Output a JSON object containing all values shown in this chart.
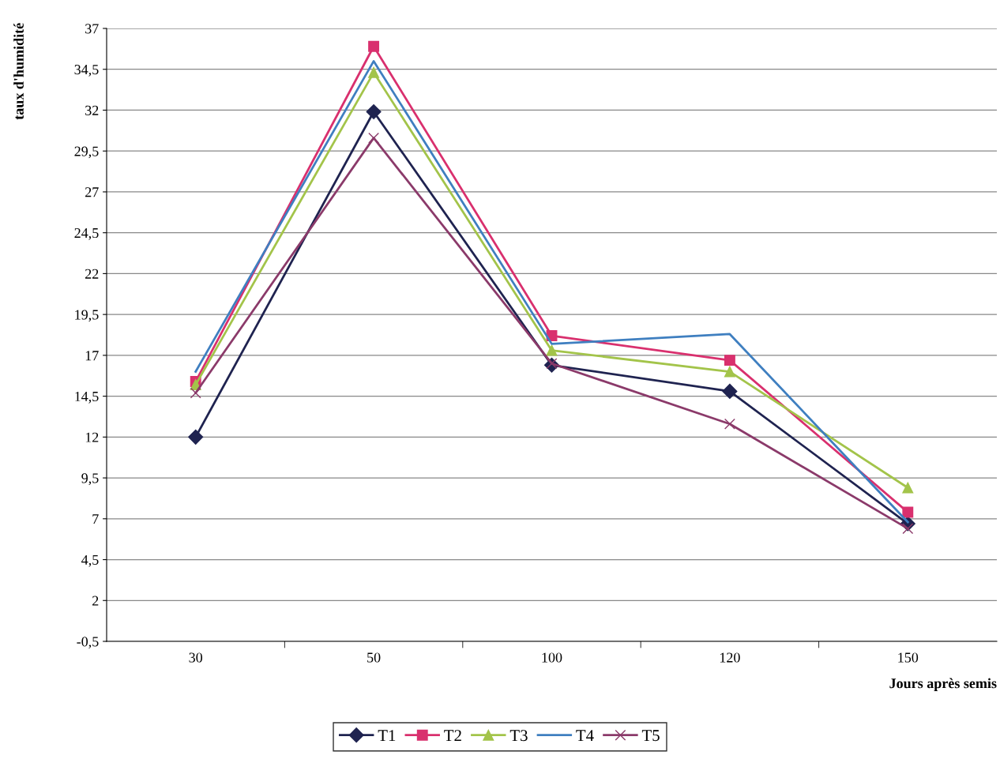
{
  "chart_data": {
    "type": "line",
    "xlabel": "Jours après semis",
    "ylabel": "taux d'humidité",
    "categories": [
      "30",
      "50",
      "100",
      "120",
      "150"
    ],
    "series": [
      {
        "name": "T1",
        "color": "#1f2350",
        "marker": "diamond",
        "values": [
          12,
          31.9,
          16.4,
          14.8,
          6.7
        ]
      },
      {
        "name": "T2",
        "color": "#d9306e",
        "marker": "square",
        "values": [
          15.4,
          35.9,
          18.2,
          16.7,
          7.4
        ]
      },
      {
        "name": "T3",
        "color": "#a3c44a",
        "marker": "triangle",
        "values": [
          15.2,
          34.3,
          17.3,
          16.0,
          8.9
        ]
      },
      {
        "name": "T4",
        "color": "#3f7fc0",
        "marker": "none",
        "values": [
          16.0,
          35.0,
          17.7,
          18.3,
          6.8
        ]
      },
      {
        "name": "T5",
        "color": "#8b3a6a",
        "marker": "cross",
        "values": [
          14.7,
          30.3,
          16.5,
          12.8,
          6.4
        ]
      }
    ],
    "ylim": [
      -0.5,
      37
    ],
    "yticks": [
      {
        "value": -0.5,
        "label": "-0,5"
      },
      2,
      {
        "value": 4.5,
        "label": "4,5"
      },
      7,
      {
        "value": 9.5,
        "label": "9,5"
      },
      12,
      {
        "value": 14.5,
        "label": "14,5"
      },
      17,
      {
        "value": 19.5,
        "label": "19,5"
      },
      22,
      {
        "value": 24.5,
        "label": "24,5"
      },
      27,
      {
        "value": 29.5,
        "label": "29,5"
      },
      32,
      {
        "value": 34.5,
        "label": "34,5"
      },
      37
    ],
    "grid": "y",
    "legend": "bottom",
    "line_style": "solid"
  }
}
